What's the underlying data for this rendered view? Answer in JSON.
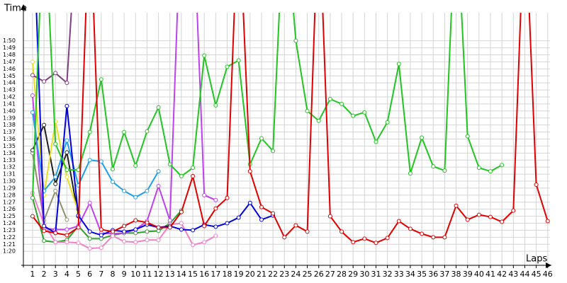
{
  "chart_data": {
    "type": "line",
    "ylabel": "Time",
    "xlabel": "Laps",
    "x": [
      1,
      2,
      3,
      4,
      5,
      6,
      7,
      8,
      9,
      10,
      11,
      12,
      13,
      14,
      15,
      16,
      17,
      18,
      19,
      20,
      21,
      22,
      23,
      24,
      25,
      26,
      27,
      28,
      29,
      30,
      31,
      32,
      33,
      34,
      35,
      36,
      37,
      38,
      39,
      40,
      41,
      42,
      43,
      44,
      45,
      46
    ],
    "xlim": [
      0.2,
      46.2
    ],
    "xticks": [
      1,
      2,
      3,
      4,
      5,
      6,
      7,
      8,
      9,
      10,
      11,
      12,
      13,
      14,
      15,
      16,
      17,
      18,
      19,
      20,
      21,
      22,
      23,
      24,
      25,
      26,
      27,
      28,
      29,
      30,
      31,
      32,
      33,
      34,
      35,
      36,
      37,
      38,
      39,
      40,
      41,
      42,
      43,
      44,
      45,
      46
    ],
    "ylim": [
      78,
      114
    ],
    "yticks": [
      {
        "value": 80,
        "label": "1:20"
      },
      {
        "value": 81,
        "label": "1:21"
      },
      {
        "value": 82,
        "label": "1:22"
      },
      {
        "value": 83,
        "label": "1:23"
      },
      {
        "value": 84,
        "label": "1:24"
      },
      {
        "value": 85,
        "label": "1:25"
      },
      {
        "value": 86,
        "label": "1:26"
      },
      {
        "value": 87,
        "label": "1:27"
      },
      {
        "value": 88,
        "label": "1:28"
      },
      {
        "value": 89,
        "label": "1:29"
      },
      {
        "value": 90,
        "label": "1:30"
      },
      {
        "value": 91,
        "label": "1:31"
      },
      {
        "value": 92,
        "label": "1:32"
      },
      {
        "value": 93,
        "label": "1:33"
      },
      {
        "value": 94,
        "label": "1:34"
      },
      {
        "value": 95,
        "label": "1:35"
      },
      {
        "value": 96,
        "label": "1:36"
      },
      {
        "value": 97,
        "label": "1:37"
      },
      {
        "value": 98,
        "label": "1:38"
      },
      {
        "value": 99,
        "label": "1:39"
      },
      {
        "value": 100,
        "label": "1:40"
      },
      {
        "value": 101,
        "label": "1:41"
      },
      {
        "value": 102,
        "label": "1:42"
      },
      {
        "value": 103,
        "label": "1:43"
      },
      {
        "value": 104,
        "label": "1:44"
      },
      {
        "value": 105,
        "label": "1:45"
      },
      {
        "value": 106,
        "label": "1:46"
      },
      {
        "value": 107,
        "label": "1:47"
      },
      {
        "value": 108,
        "label": "1:48"
      },
      {
        "value": 109,
        "label": "1:49"
      },
      {
        "value": 110,
        "label": "1:50"
      }
    ],
    "grid": true,
    "series": [
      {
        "color": "#909070",
        "values": [
          94.0,
          84.4,
          88.6,
          84.5,
          null,
          null,
          null,
          null,
          null,
          null,
          null,
          null,
          null,
          null,
          null,
          null,
          null,
          null,
          null,
          null,
          null,
          null,
          null,
          null,
          null,
          null,
          null,
          null,
          null,
          null,
          null,
          null,
          null,
          null,
          null,
          null,
          null,
          null,
          null,
          null,
          null,
          null,
          null,
          null,
          null,
          null
        ]
      },
      {
        "color": "#202020",
        "values": [
          94.4,
          98.0,
          89.6,
          94.1,
          85.0,
          null,
          null,
          null,
          null,
          null,
          null,
          null,
          null,
          null,
          null,
          null,
          null,
          null,
          null,
          null,
          null,
          null,
          null,
          null,
          null,
          null,
          null,
          null,
          null,
          null,
          null,
          null,
          null,
          null,
          null,
          null,
          null,
          null,
          null,
          null,
          null,
          null,
          null,
          null,
          null,
          null
        ]
      },
      {
        "color": "#e8e020",
        "values": [
          107.0,
          88.0,
          98.5,
          90.6,
          85.6,
          null,
          null,
          null,
          null,
          null,
          null,
          null,
          null,
          null,
          null,
          null,
          null,
          null,
          null,
          null,
          null,
          null,
          null,
          null,
          null,
          null,
          null,
          null,
          null,
          null,
          null,
          null,
          null,
          null,
          null,
          null,
          null,
          null,
          null,
          null,
          null,
          null,
          null,
          null,
          null,
          null
        ]
      },
      {
        "color": "#804080",
        "values": [
          105.1,
          104.2,
          105.4,
          104.0,
          130,
          null,
          null,
          null,
          null,
          null,
          null,
          null,
          null,
          null,
          null,
          null,
          null,
          null,
          null,
          null,
          null,
          null,
          null,
          null,
          null,
          null,
          null,
          null,
          null,
          null,
          null,
          null,
          null,
          null,
          null,
          null,
          null,
          null,
          null,
          null,
          null,
          null,
          null,
          null,
          null,
          null
        ]
      },
      {
        "color": "#30a030",
        "values": [
          87.6,
          81.5,
          81.3,
          81.6,
          83.6,
          81.8,
          81.8,
          82.3,
          82.6,
          82.6,
          82.8,
          82.9,
          84.0,
          85.8,
          null,
          null,
          null,
          null,
          null,
          null,
          null,
          null,
          null,
          null,
          null,
          null,
          null,
          null,
          null,
          null,
          null,
          null,
          null,
          null,
          null,
          null,
          null,
          null,
          null,
          null,
          null,
          null,
          null,
          null,
          null,
          null
        ]
      },
      {
        "color": "#c040f0",
        "values": [
          102.2,
          83.3,
          83.1,
          83.1,
          83.6,
          86.9,
          82.6,
          82.5,
          82.6,
          83.1,
          84.3,
          89.3,
          84.4,
          130,
          130,
          88.0,
          87.3,
          null,
          null,
          null,
          null,
          null,
          null,
          null,
          null,
          null,
          null,
          null,
          null,
          null,
          null,
          null,
          null,
          null,
          null,
          null,
          null,
          null,
          null,
          null,
          null,
          null,
          null,
          null,
          null,
          null
        ]
      },
      {
        "color": "#f080c8",
        "values": [
          88.3,
          83.9,
          81.3,
          81.3,
          81.2,
          80.4,
          80.5,
          82.2,
          81.4,
          81.3,
          81.6,
          81.6,
          83.8,
          84.0,
          80.9,
          81.3,
          82.2,
          null,
          null,
          null,
          null,
          null,
          null,
          null,
          null,
          null,
          null,
          null,
          null,
          null,
          null,
          null,
          null,
          null,
          null,
          null,
          null,
          null,
          null,
          null,
          null,
          null,
          null,
          null,
          null,
          null
        ]
      },
      {
        "color": "#20a0e8",
        "values": [
          99.8,
          88.6,
          90.6,
          95.8,
          89.4,
          93.0,
          92.8,
          89.9,
          88.6,
          87.7,
          88.6,
          91.4,
          null,
          null,
          null,
          null,
          null,
          null,
          null,
          null,
          null,
          null,
          null,
          null,
          null,
          null,
          null,
          null,
          null,
          null,
          null,
          null,
          null,
          null,
          null,
          null,
          null,
          null,
          null,
          null,
          null,
          null,
          null,
          null,
          null,
          null
        ]
      },
      {
        "color": "#0000dd",
        "values": [
          130,
          83.6,
          82.6,
          100.7,
          85.1,
          82.8,
          82.3,
          83.0,
          82.8,
          83.1,
          83.8,
          83.4,
          83.6,
          83.1,
          83.0,
          83.8,
          83.5,
          84.0,
          84.8,
          86.9,
          84.5,
          85.1,
          null,
          null,
          null,
          null,
          null,
          null,
          null,
          null,
          null,
          null,
          null,
          null,
          null,
          null,
          null,
          null,
          null,
          null,
          null,
          null,
          null,
          null,
          null,
          null
        ]
      },
      {
        "color": "#22c422",
        "values": [
          87.6,
          130,
          95.3,
          91.6,
          91.6,
          97.0,
          104.5,
          91.7,
          97.0,
          92.2,
          97.1,
          100.5,
          92.4,
          90.7,
          91.9,
          107.9,
          100.8,
          106.3,
          107.2,
          92.4,
          96.1,
          94.3,
          130,
          110.0,
          100.0,
          98.6,
          101.7,
          101.0,
          99.3,
          99.8,
          95.6,
          98.4,
          106.7,
          91.1,
          96.2,
          92.1,
          91.5,
          130,
          96.4,
          91.9,
          91.4,
          92.3,
          null,
          null,
          null,
          null
        ]
      },
      {
        "color": "#e00000",
        "values": [
          85,
          82.9,
          82.6,
          82.3,
          83.4,
          130,
          83.1,
          82.8,
          83.6,
          84.4,
          84.1,
          83.4,
          83.4,
          85.6,
          90.7,
          83.6,
          86.1,
          87.6,
          130,
          91.4,
          86.3,
          85.4,
          82.0,
          83.7,
          82.8,
          130,
          85.0,
          82.8,
          81.3,
          81.8,
          81.2,
          81.9,
          84.3,
          83.2,
          82.5,
          82.0,
          82.0,
          86.5,
          84.5,
          85.2,
          84.9,
          84.2,
          85.8,
          130,
          89.5,
          84.3
        ]
      }
    ]
  }
}
